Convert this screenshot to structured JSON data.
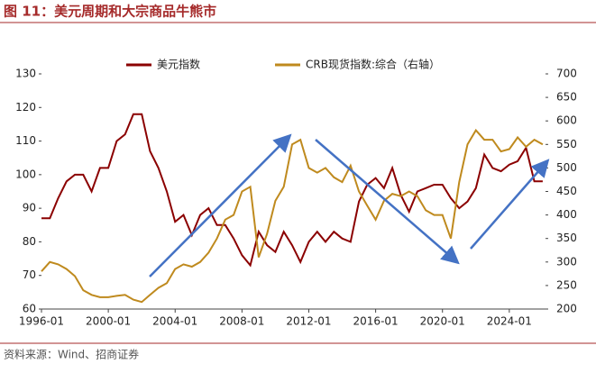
{
  "chart_data": {
    "type": "line",
    "title": "图 11：美元周期和大宗商品牛熊市",
    "source": "资料来源：Wind、招商证券",
    "x": [
      "1996-01",
      "1996-07",
      "1997-01",
      "1997-07",
      "1998-01",
      "1998-07",
      "1999-01",
      "1999-07",
      "2000-01",
      "2000-07",
      "2001-01",
      "2001-07",
      "2002-01",
      "2002-07",
      "2003-01",
      "2003-07",
      "2004-01",
      "2004-07",
      "2005-01",
      "2005-07",
      "2006-01",
      "2006-07",
      "2007-01",
      "2007-07",
      "2008-01",
      "2008-07",
      "2009-01",
      "2009-07",
      "2010-01",
      "2010-07",
      "2011-01",
      "2011-07",
      "2012-01",
      "2012-07",
      "2013-01",
      "2013-07",
      "2014-01",
      "2014-07",
      "2015-01",
      "2015-07",
      "2016-01",
      "2016-07",
      "2017-01",
      "2017-07",
      "2018-01",
      "2018-07",
      "2019-01",
      "2019-07",
      "2020-01",
      "2020-07",
      "2021-01",
      "2021-07",
      "2022-01",
      "2022-07",
      "2023-01",
      "2023-07",
      "2024-01",
      "2024-07",
      "2025-01",
      "2025-07",
      "2026-01"
    ],
    "series": [
      {
        "name": "美元指数",
        "color": "#8b0000",
        "axis": "y",
        "values": [
          87,
          87,
          93,
          98,
          100,
          100,
          95,
          102,
          102,
          110,
          112,
          118,
          118,
          107,
          102,
          95,
          86,
          88,
          82,
          88,
          90,
          85,
          85,
          81,
          76,
          73,
          83,
          79,
          77,
          83,
          79,
          74,
          80,
          83,
          80,
          83,
          81,
          80,
          92,
          97,
          99,
          96,
          102,
          94,
          89,
          95,
          96,
          97,
          97,
          93,
          90,
          92,
          96,
          106,
          102,
          101,
          103,
          104,
          108,
          98,
          98
        ]
      },
      {
        "name": "CRB现货指数:综合（右轴）",
        "color": "#bf8a1e",
        "axis": "y2",
        "values": [
          280,
          300,
          295,
          285,
          270,
          240,
          230,
          225,
          225,
          228,
          230,
          220,
          215,
          230,
          245,
          255,
          285,
          295,
          290,
          300,
          320,
          350,
          390,
          400,
          450,
          460,
          310,
          360,
          430,
          460,
          550,
          560,
          500,
          490,
          500,
          480,
          470,
          505,
          450,
          420,
          390,
          430,
          445,
          440,
          450,
          440,
          410,
          400,
          400,
          350,
          470,
          550,
          580,
          560,
          560,
          535,
          540,
          565,
          545,
          560,
          550
        ]
      }
    ],
    "xlim": [
      "1996-01",
      "2026-03"
    ],
    "xticks": [
      "1996-01",
      "2000-01",
      "2004-01",
      "2008-01",
      "2012-01",
      "2016-01",
      "2020-01",
      "2024-01"
    ],
    "ylim": [
      60,
      130
    ],
    "yticks": [
      60,
      70,
      80,
      90,
      100,
      110,
      120,
      130
    ],
    "y2lim": [
      200,
      700
    ],
    "y2ticks": [
      200,
      250,
      300,
      350,
      400,
      450,
      500,
      550,
      600,
      650,
      700
    ]
  }
}
